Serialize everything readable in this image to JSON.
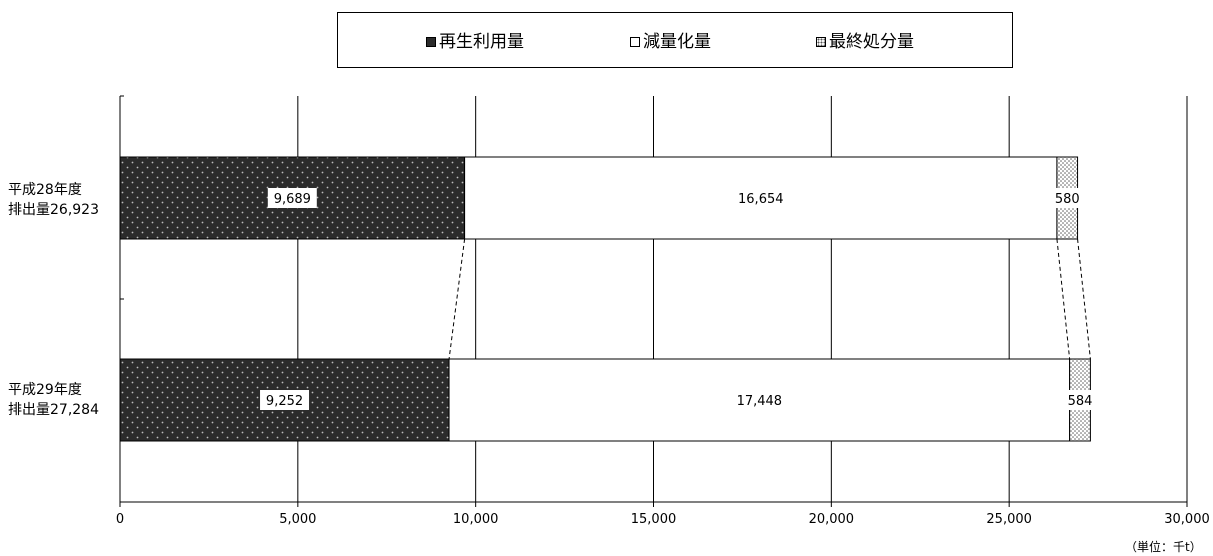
{
  "legend": {
    "items": [
      {
        "label": "再生利用量",
        "swatch": "dark-dotted"
      },
      {
        "label": "減量化量",
        "swatch": "white"
      },
      {
        "label": "最終処分量",
        "swatch": "light-dotted"
      }
    ]
  },
  "unit_label": "（単位：千t）",
  "chart_data": {
    "type": "bar",
    "orientation": "horizontal",
    "stacked": true,
    "categories": [
      {
        "line1": "平成28年度",
        "line2": "排出量26,923"
      },
      {
        "line1": "平成29年度",
        "line2": "排出量27,284"
      }
    ],
    "series": [
      {
        "name": "再生利用量",
        "values": [
          9689,
          9252
        ],
        "labels": [
          "9,689",
          "9,252"
        ],
        "color": "#2b2b2b"
      },
      {
        "name": "減量化量",
        "values": [
          16654,
          17448
        ],
        "labels": [
          "16,654",
          "17,448"
        ],
        "color": "#ffffff"
      },
      {
        "name": "最終処分量",
        "values": [
          580,
          584
        ],
        "labels": [
          "580",
          "584"
        ],
        "color": "#e0e0e0"
      }
    ],
    "xlim": [
      0,
      30000
    ],
    "ticks": [
      0,
      5000,
      10000,
      15000,
      20000,
      25000,
      30000
    ],
    "tick_labels": [
      "0",
      "5,000",
      "10,000",
      "15,000",
      "20,000",
      "25,000",
      "30,000"
    ],
    "grid": true,
    "legend_position": "top",
    "connector_lines": true
  }
}
